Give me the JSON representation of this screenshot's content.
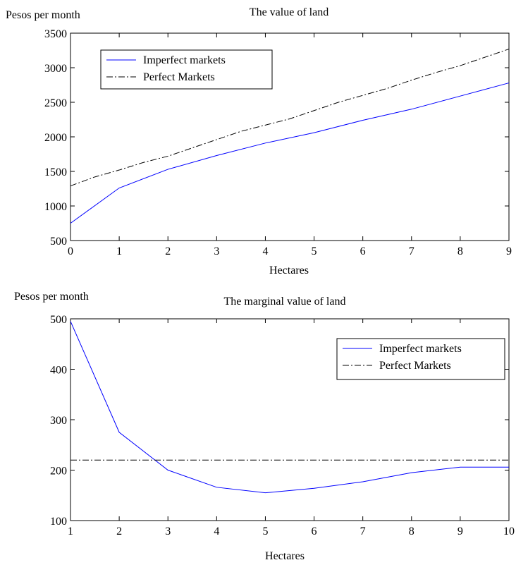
{
  "chart_data": [
    {
      "type": "line",
      "title": "The value of land",
      "xlabel": "Hectares",
      "ylabel": "Pesos per month",
      "xlim": [
        0,
        9
      ],
      "ylim": [
        500,
        3500
      ],
      "xticks": [
        0,
        1,
        2,
        3,
        4,
        5,
        6,
        7,
        8,
        9
      ],
      "yticks": [
        500,
        1000,
        1500,
        2000,
        2500,
        3000,
        3500
      ],
      "grid": false,
      "legend_position": "top-left",
      "series": [
        {
          "name": "Imperfect markets",
          "style": "solid",
          "color": "#0000ff",
          "x": [
            0,
            1,
            2,
            3,
            4,
            5,
            6,
            7,
            8,
            9
          ],
          "values": [
            750,
            1260,
            1530,
            1730,
            1910,
            2060,
            2240,
            2400,
            2590,
            2780
          ]
        },
        {
          "name": "Perfect Markets",
          "style": "dashdot",
          "color": "#000000",
          "x": [
            0,
            0.5,
            1,
            1.5,
            2,
            2.5,
            3,
            3.5,
            4,
            4.5,
            5,
            5.5,
            6,
            6.5,
            7,
            7.5,
            8,
            8.5,
            9
          ],
          "values": [
            1290,
            1420,
            1520,
            1630,
            1720,
            1840,
            1960,
            2080,
            2170,
            2260,
            2380,
            2500,
            2600,
            2700,
            2820,
            2930,
            3030,
            3150,
            3270
          ]
        }
      ]
    },
    {
      "type": "line",
      "title": "The marginal value of land",
      "xlabel": "Hectares",
      "ylabel": "Pesos per month",
      "xlim": [
        1,
        10
      ],
      "ylim": [
        100,
        500
      ],
      "xticks": [
        1,
        2,
        3,
        4,
        5,
        6,
        7,
        8,
        9,
        10
      ],
      "yticks": [
        100,
        200,
        300,
        400,
        500
      ],
      "grid": false,
      "legend_position": "top-right",
      "series": [
        {
          "name": "Imperfect markets",
          "style": "solid",
          "color": "#0000ff",
          "x": [
            1,
            2,
            3,
            4,
            5,
            6,
            7,
            8,
            9,
            10
          ],
          "values": [
            495,
            275,
            200,
            166,
            155,
            164,
            177,
            195,
            206,
            206
          ]
        },
        {
          "name": "Perfect Markets",
          "style": "dashdot",
          "color": "#000000",
          "x": [
            1,
            10
          ],
          "values": [
            220,
            220
          ]
        }
      ]
    }
  ]
}
